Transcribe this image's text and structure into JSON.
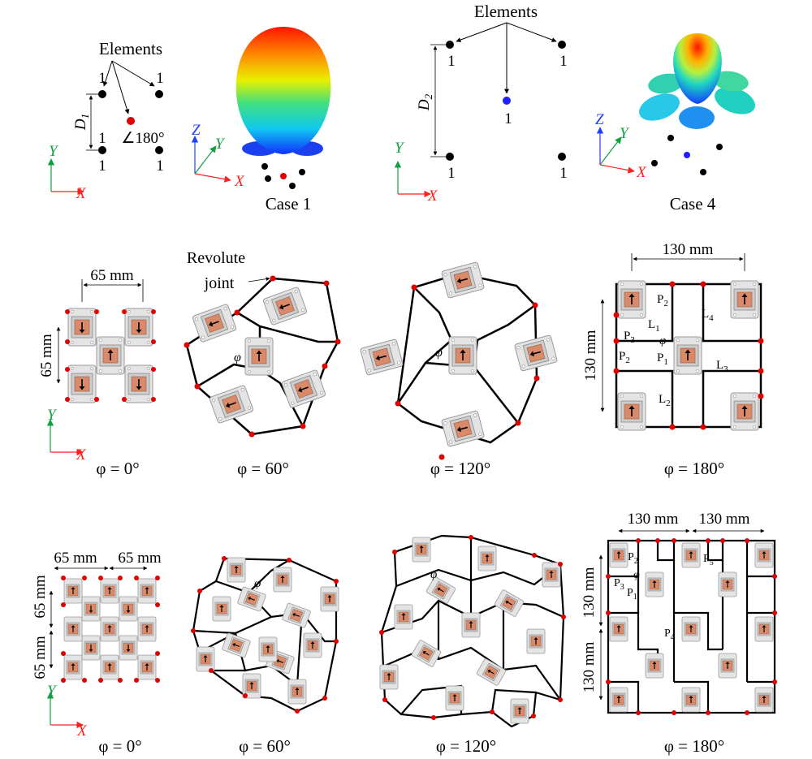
{
  "top": {
    "left": {
      "elements_label": "Elements",
      "gain_tl": "1",
      "gain_tr": "1",
      "gain_bl": "1",
      "gain_br": "1",
      "phase_label": "∠180°",
      "dim_label": "D",
      "dim_sub": "1",
      "caption": "Case 1",
      "center_dot_color": "#ff0000"
    },
    "right": {
      "elements_label": "Elements",
      "gain_tl": "1",
      "gain_tr": "1",
      "gain_center": "1",
      "gain_bl": "1",
      "gain_br": "1",
      "dim_label": "D",
      "dim_sub": "2",
      "caption": "Case 4",
      "center_dot_color": "#1f1fff"
    }
  },
  "axes": {
    "x": "X",
    "y": "Y",
    "z": "Z"
  },
  "colors": {
    "x_axis": "#ff2020",
    "y_axis": "#10a040",
    "z_axis": "#2040ff",
    "joint": "#e00000",
    "module": "#d98a6a"
  },
  "row2": {
    "dim_65_h": "65 mm",
    "dim_65_v": "65 mm",
    "revolute_line1": "Revolute",
    "revolute_line2": "joint",
    "phi_symbol": "φ",
    "dim_130_h": "130 mm",
    "dim_130_v": "130 mm",
    "P1": "P",
    "P1_sub": "1",
    "P2": "P",
    "P2_sub": "2",
    "P3": "P",
    "P3_sub": "3",
    "L1": "L",
    "L1_sub": "1",
    "L2": "L",
    "L2_sub": "2",
    "L3": "L",
    "L3_sub": "3",
    "L4": "L",
    "L4_sub": "4",
    "captions": [
      "φ = 0°",
      "φ = 60°",
      "φ = 120°",
      "φ = 180°"
    ]
  },
  "row3": {
    "dim_65_h_a": "65 mm",
    "dim_65_h_b": "65 mm",
    "dim_65_v_a": "65 mm",
    "dim_65_v_b": "65 mm",
    "dim_130_h_a": "130 mm",
    "dim_130_h_b": "130 mm",
    "dim_130_v_a": "130 mm",
    "dim_130_v_b": "130 mm",
    "P1": "P",
    "P1_sub": "1",
    "P2": "P",
    "P2_sub": "2",
    "P3": "P",
    "P3_sub": "3",
    "P4": "P",
    "P4_sub": "4",
    "P5": "P",
    "P5_sub": "5",
    "phi_symbol": "φ",
    "captions": [
      "φ = 0°",
      "φ = 60°",
      "φ = 120°",
      "φ = 180°"
    ]
  }
}
